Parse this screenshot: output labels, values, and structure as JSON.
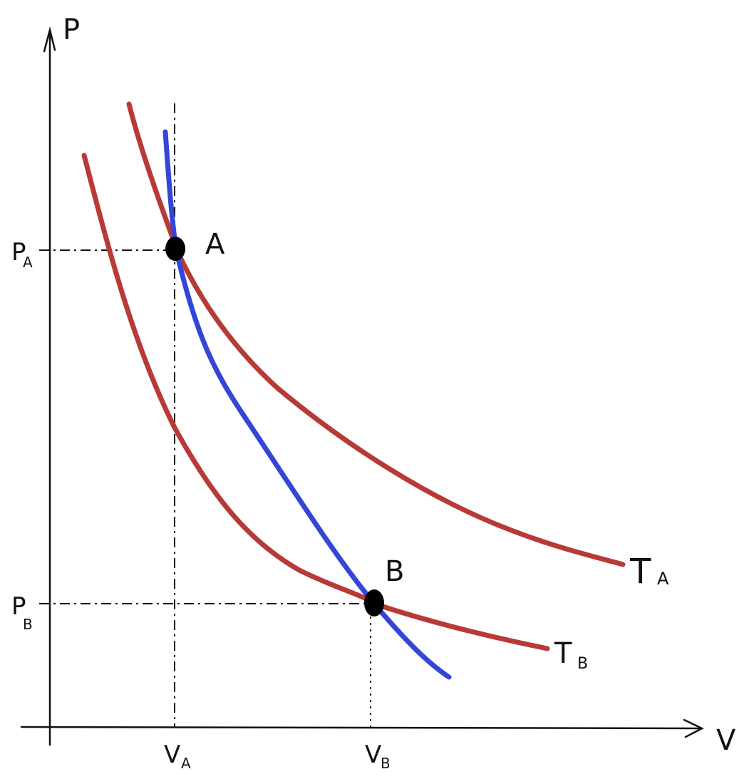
{
  "diagram": {
    "axes": {
      "x_label": "V",
      "y_label": "P"
    },
    "ticks": {
      "pA": {
        "main": "P",
        "sub": "A"
      },
      "pB": {
        "main": "P",
        "sub": "B"
      },
      "vA": {
        "main": "V",
        "sub": "A"
      },
      "vB": {
        "main": "V",
        "sub": "B"
      }
    },
    "points": {
      "a": "A",
      "b": "B"
    },
    "curves": {
      "tA": {
        "main": "T",
        "sub": "A"
      },
      "tB": {
        "main": "T",
        "sub": "B"
      }
    },
    "colors": {
      "isotherm": "#b73a37",
      "adiabat": "#3346d8",
      "axes": "#111111",
      "points": "#000000"
    }
  }
}
